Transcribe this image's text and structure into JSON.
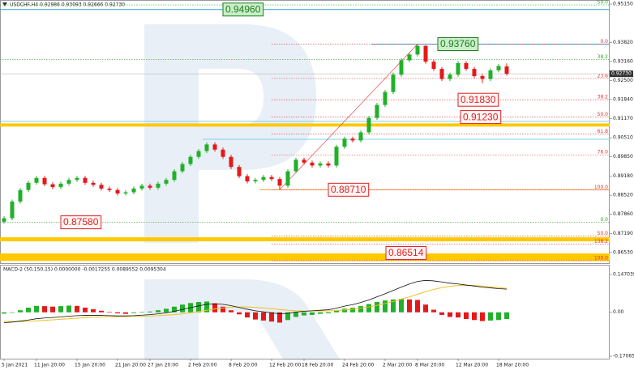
{
  "chart_data": {
    "type": "candlestick",
    "symbol_header": "USDCHF,H4  0.92986 0.93093 0.92666 0.92730",
    "categories": [
      "5 Jan 2021",
      null,
      null,
      null,
      "11 Jan 20:00",
      null,
      null,
      null,
      null,
      "15 Jan 20:00",
      null,
      null,
      null,
      null,
      "21 Jan 20:00",
      null,
      null,
      null,
      "27 Jan 20:00",
      null,
      null,
      null,
      null,
      "2 Feb 20:00",
      null,
      null,
      null,
      null,
      "8 Feb 20:00",
      null,
      null,
      null,
      null,
      "12 Feb 20:00",
      null,
      null,
      null,
      "18 Feb 20:00",
      null,
      null,
      null,
      null,
      "24 Feb 20:00",
      null,
      null,
      null,
      null,
      "2 Mar 20:00",
      null,
      null,
      null,
      "8 Mar 20:00",
      null,
      null,
      null,
      null,
      "12 Mar 20:00",
      null,
      null,
      null,
      null,
      "18 Mar 20:00",
      null
    ],
    "open": [
      0.876,
      0.8772,
      0.883,
      0.887,
      0.8895,
      0.8912,
      0.889,
      0.888,
      0.8892,
      0.8905,
      0.8912,
      0.8895,
      0.8888,
      0.8875,
      0.887,
      0.8858,
      0.8862,
      0.8875,
      0.8885,
      0.8878,
      0.8892,
      0.8905,
      0.8935,
      0.896,
      0.8985,
      0.9005,
      0.9028,
      0.901,
      0.8985,
      0.895,
      0.8918,
      0.89,
      0.8905,
      0.8915,
      0.8908,
      0.8885,
      0.8935,
      0.8975,
      0.8965,
      0.8955,
      0.8962,
      0.8955,
      0.902,
      0.9048,
      0.9042,
      0.907,
      0.912,
      0.9165,
      0.921,
      0.927,
      0.932,
      0.934,
      0.937,
      0.9315,
      0.929,
      0.9255,
      0.927,
      0.931,
      0.929,
      0.9265,
      0.9255,
      0.9285,
      0.92986
    ],
    "high": [
      0.8779,
      0.8837,
      0.8877,
      0.8902,
      0.8919,
      0.8919,
      0.8897,
      0.8899,
      0.8912,
      0.8919,
      0.8919,
      0.8902,
      0.8895,
      0.8882,
      0.8877,
      0.8869,
      0.8882,
      0.8892,
      0.8892,
      0.8899,
      0.8912,
      0.8942,
      0.8967,
      0.8992,
      0.9012,
      0.9035,
      0.9035,
      0.9017,
      0.8992,
      0.8957,
      0.8925,
      0.8912,
      0.8922,
      0.8922,
      0.8915,
      0.8942,
      0.8982,
      0.8982,
      0.8972,
      0.8969,
      0.8969,
      0.9027,
      0.9055,
      0.9055,
      0.9077,
      0.9127,
      0.9172,
      0.9217,
      0.9277,
      0.9327,
      0.9347,
      0.9376,
      0.9372,
      0.9322,
      0.9297,
      0.9277,
      0.9317,
      0.9317,
      0.9297,
      0.9272,
      0.9292,
      0.9307,
      0.93093
    ],
    "low": [
      0.8753,
      0.8765,
      0.8823,
      0.8863,
      0.8888,
      0.8883,
      0.8873,
      0.8873,
      0.8885,
      0.8898,
      0.8888,
      0.8881,
      0.8868,
      0.8863,
      0.8851,
      0.8851,
      0.8855,
      0.8868,
      0.8871,
      0.8871,
      0.8885,
      0.8898,
      0.8928,
      0.8953,
      0.8978,
      0.8998,
      0.9003,
      0.8978,
      0.8943,
      0.8911,
      0.8893,
      0.8893,
      0.8898,
      0.8901,
      0.8871,
      0.8878,
      0.8928,
      0.8958,
      0.8948,
      0.8948,
      0.8948,
      0.8948,
      0.9013,
      0.9035,
      0.9035,
      0.9063,
      0.9113,
      0.9158,
      0.9203,
      0.9263,
      0.9313,
      0.9333,
      0.9308,
      0.9283,
      0.9248,
      0.9248,
      0.9263,
      0.9283,
      0.9258,
      0.9241,
      0.9248,
      0.9278,
      0.92666
    ],
    "close": [
      0.8772,
      0.883,
      0.887,
      0.8895,
      0.8912,
      0.889,
      0.888,
      0.8892,
      0.8905,
      0.8912,
      0.8895,
      0.8888,
      0.8875,
      0.887,
      0.8858,
      0.8862,
      0.8875,
      0.8885,
      0.8878,
      0.8892,
      0.8905,
      0.8935,
      0.896,
      0.8985,
      0.9005,
      0.9028,
      0.901,
      0.8985,
      0.895,
      0.8918,
      0.89,
      0.8905,
      0.8915,
      0.8908,
      0.8885,
      0.8935,
      0.8975,
      0.8965,
      0.8955,
      0.8962,
      0.8955,
      0.902,
      0.9048,
      0.9042,
      0.907,
      0.912,
      0.9165,
      0.921,
      0.927,
      0.932,
      0.934,
      0.937,
      0.9315,
      0.929,
      0.9255,
      0.927,
      0.931,
      0.929,
      0.9265,
      0.9255,
      0.9285,
      0.93,
      0.9273
    ],
    "up_color": "#22b02a",
    "down_color": "#e3191b",
    "ylim": [
      0.86164,
      0.9529
    ],
    "yticks": [
      {
        "value": 0.9515,
        "label": "0.95150"
      },
      {
        "value": 0.9382,
        "label": "0.93820"
      },
      {
        "value": 0.9316,
        "label": "0.93160"
      },
      {
        "value": 0.925,
        "label": "0.92500"
      },
      {
        "value": 0.9184,
        "label": "0.91840"
      },
      {
        "value": 0.9117,
        "label": "0.91170"
      },
      {
        "value": 0.9051,
        "label": "0.90510"
      },
      {
        "value": 0.8985,
        "label": "0.89850"
      },
      {
        "value": 0.8918,
        "label": "0.89180"
      },
      {
        "value": 0.8852,
        "label": "0.88520"
      },
      {
        "value": 0.8786,
        "label": "0.87860"
      },
      {
        "value": 0.8719,
        "label": "0.87190"
      },
      {
        "value": 0.8653,
        "label": "0.86530"
      }
    ],
    "current_price": {
      "value": 0.9273,
      "label": "0.92730"
    },
    "lines": [
      {
        "value": 0.9496,
        "color": "#2aa4d8"
      },
      {
        "value": 0.9376,
        "color": "#2aa4d8"
      },
      {
        "value": 0.9108,
        "color": "#7fd0ee"
      },
      {
        "value": 0.9046,
        "color": "#7fd0ee"
      },
      {
        "value": 0.8871,
        "color": "#f0a030"
      }
    ],
    "zones": [
      {
        "from": 0.909,
        "to": 0.9101,
        "color": "#ffc800"
      },
      {
        "from": 0.8692,
        "to": 0.8706,
        "color": "#ffc800"
      },
      {
        "from": 0.8624,
        "to": 0.865,
        "color": "#ffc800"
      }
    ],
    "fibonacci": [
      {
        "color": "#e03030",
        "levels": [
          {
            "value": 0.9376,
            "label": "0.0"
          },
          {
            "value": 0.9257,
            "label": "23.6"
          },
          {
            "value": 0.9183,
            "label": "38.2"
          },
          {
            "value": 0.91235,
            "label": "50.0"
          },
          {
            "value": 0.9064,
            "label": "61.8"
          },
          {
            "value": 0.8992,
            "label": "76.0"
          },
          {
            "value": 0.8871,
            "label": "100.0"
          }
        ]
      },
      {
        "color": "#3aa030",
        "levels": [
          {
            "value": 0.9512,
            "label": "50.0"
          },
          {
            "value": 0.9322,
            "label": "38.2"
          },
          {
            "value": 0.8758,
            "label": "0.0"
          }
        ]
      },
      {
        "color": "#e03030",
        "levels": [
          {
            "value": 0.871,
            "label": "50.0"
          },
          {
            "value": 0.8682,
            "label": "138.2"
          },
          {
            "value": 0.8625,
            "label": "100.0"
          }
        ]
      }
    ],
    "annotations": [
      {
        "value": 0.9496,
        "label": "0.94960",
        "color": "#1e7a1e",
        "fill": "#c9efc9"
      },
      {
        "value": 0.9376,
        "label": "0.93760",
        "color": "#1e7a1e",
        "fill": "#c9efc9"
      },
      {
        "value": 0.9183,
        "label": "0.91830",
        "color": "#e02020",
        "fill": "#fff4f4"
      },
      {
        "value": 0.9123,
        "label": "0.91230",
        "color": "#e02020",
        "fill": "#fff4f4"
      },
      {
        "value": 0.8871,
        "label": "0.88710",
        "color": "#e02020",
        "fill": "#fff4f4"
      },
      {
        "value": 0.8758,
        "label": "0.87580",
        "color": "#e02020",
        "fill": "#fff4f4"
      },
      {
        "value": 0.86514,
        "label": "0.86514",
        "color": "#e02020",
        "fill": "#fff4f4"
      }
    ],
    "macd": {
      "title": "MACD-2 (50,150,15) 0.0000000 -0.0017255 0.0089552 0.0095304",
      "ylim": [
        -0.170657,
        0.147039
      ],
      "yticks": [
        0.147039,
        {
          "value": 0,
          "label": "0.00"
        },
        -0.170657
      ],
      "histogram": [
        -0.005,
        -0.002,
        0.008,
        0.018,
        0.025,
        0.024,
        0.022,
        0.024,
        0.026,
        0.025,
        0.018,
        0.012,
        0.006,
        0.002,
        -0.004,
        -0.006,
        -0.003,
        0.002,
        0.003,
        0.008,
        0.014,
        0.022,
        0.03,
        0.036,
        0.04,
        0.042,
        0.035,
        0.022,
        0.008,
        -0.008,
        -0.02,
        -0.028,
        -0.032,
        -0.036,
        -0.04,
        -0.03,
        -0.018,
        -0.012,
        -0.01,
        -0.006,
        -0.004,
        0.006,
        0.014,
        0.018,
        0.024,
        0.032,
        0.04,
        0.046,
        0.05,
        0.052,
        0.05,
        0.048,
        0.03,
        0.01,
        -0.01,
        -0.018,
        -0.02,
        -0.026,
        -0.03,
        -0.034,
        -0.032,
        -0.03,
        -0.026
      ],
      "main": [
        -0.04,
        -0.038,
        -0.034,
        -0.03,
        -0.025,
        -0.022,
        -0.02,
        -0.018,
        -0.015,
        -0.013,
        -0.012,
        -0.012,
        -0.012,
        -0.013,
        -0.014,
        -0.014,
        -0.013,
        -0.011,
        -0.009,
        -0.006,
        -0.002,
        0.004,
        0.011,
        0.018,
        0.025,
        0.031,
        0.033,
        0.031,
        0.026,
        0.019,
        0.012,
        0.006,
        0.002,
        -0.002,
        -0.006,
        -0.004,
        0.001,
        0.004,
        0.006,
        0.008,
        0.01,
        0.016,
        0.024,
        0.03,
        0.038,
        0.048,
        0.06,
        0.072,
        0.085,
        0.098,
        0.11,
        0.12,
        0.124,
        0.122,
        0.118,
        0.113,
        0.11,
        0.106,
        0.102,
        0.098,
        0.095,
        0.092,
        0.09
      ],
      "signal": [
        -0.035,
        -0.036,
        -0.036,
        -0.035,
        -0.033,
        -0.031,
        -0.029,
        -0.027,
        -0.025,
        -0.023,
        -0.021,
        -0.019,
        -0.018,
        -0.017,
        -0.016,
        -0.016,
        -0.015,
        -0.015,
        -0.014,
        -0.013,
        -0.011,
        -0.009,
        -0.006,
        -0.002,
        0.003,
        0.008,
        0.013,
        0.017,
        0.02,
        0.021,
        0.021,
        0.019,
        0.017,
        0.014,
        0.011,
        0.008,
        0.006,
        0.005,
        0.005,
        0.005,
        0.006,
        0.007,
        0.009,
        0.012,
        0.016,
        0.021,
        0.027,
        0.034,
        0.042,
        0.051,
        0.06,
        0.07,
        0.08,
        0.089,
        0.096,
        0.101,
        0.104,
        0.105,
        0.104,
        0.102,
        0.099,
        0.096,
        0.093
      ],
      "main_color": "#111111",
      "signal_color": "#f0c020"
    }
  }
}
